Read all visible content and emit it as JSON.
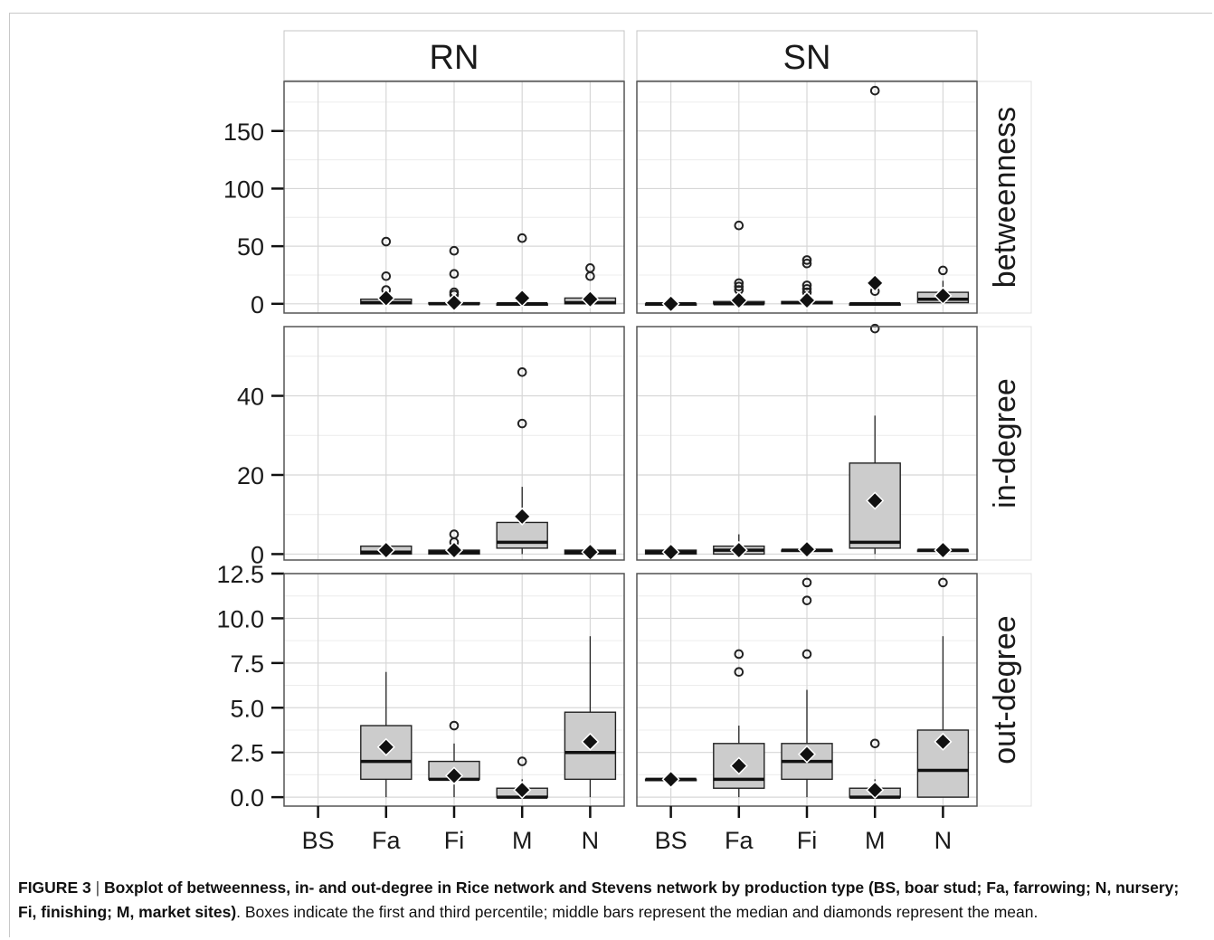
{
  "figure": {
    "label": "FIGURE 3",
    "separator": " | ",
    "title": "Boxplot of betweenness, in- and out-degree in Rice network and Stevens network by production type (BS, boar stud; Fa, farrowing; N, nursery; Fi, finishing; M, market sites)",
    "description": ". Boxes indicate the first and third percentile; middle bars represent the median and diamonds represent the mean."
  },
  "colors": {
    "box_fill": "#cccccc",
    "panel_bg": "#ffffff",
    "grid": "#d7d7d7",
    "strip_bg": "#ffffff",
    "outline": "#333333",
    "text": "#1a1a1a"
  },
  "chart_data": {
    "type": "boxplot",
    "facets": {
      "columns": [
        "RN",
        "SN"
      ],
      "rows": [
        "betweenness",
        "in-degree",
        "out-degree"
      ]
    },
    "categories": [
      "BS",
      "Fa",
      "Fi",
      "M",
      "N"
    ],
    "rows": [
      {
        "name": "betweenness",
        "ylim": [
          -8,
          193
        ],
        "ticks": [
          0,
          50,
          100,
          150
        ],
        "tick_labels": [
          "0",
          "50",
          "100",
          "150"
        ],
        "panels": {
          "RN": [
            null,
            {
              "q1": 0,
              "median": 1,
              "q3": 4,
              "wlo": 0,
              "whi": 9,
              "mean": 5,
              "outliers": [
                12,
                24,
                54
              ]
            },
            {
              "q1": 0,
              "median": 0,
              "q3": 1,
              "wlo": 0,
              "whi": 3,
              "mean": 1,
              "outliers": [
                8,
                10,
                26,
                46
              ]
            },
            {
              "q1": 0,
              "median": 0,
              "q3": 0,
              "wlo": 0,
              "whi": 0,
              "mean": 5,
              "outliers": [
                57
              ]
            },
            {
              "q1": 0,
              "median": 1,
              "q3": 5,
              "wlo": 0,
              "whi": 10,
              "mean": 4,
              "outliers": [
                24,
                31
              ]
            }
          ],
          "SN": [
            {
              "q1": 0,
              "median": 0,
              "q3": 0,
              "wlo": 0,
              "whi": 0,
              "mean": 0,
              "outliers": []
            },
            {
              "q1": 0,
              "median": 0,
              "q3": 2,
              "wlo": 0,
              "whi": 5,
              "mean": 3,
              "outliers": [
                12,
                15,
                18,
                68
              ]
            },
            {
              "q1": 0,
              "median": 1,
              "q3": 2,
              "wlo": 0,
              "whi": 5,
              "mean": 3,
              "outliers": [
                10,
                13,
                16,
                35,
                38
              ]
            },
            {
              "q1": 0,
              "median": 0,
              "q3": 0,
              "wlo": 0,
              "whi": 0,
              "mean": 18,
              "outliers": [
                11,
                185
              ]
            },
            {
              "q1": 1,
              "median": 4,
              "q3": 10,
              "wlo": 0,
              "whi": 20,
              "mean": 7,
              "outliers": [
                29
              ]
            }
          ]
        }
      },
      {
        "name": "in-degree",
        "ylim": [
          -1.5,
          57.5
        ],
        "ticks": [
          0,
          20,
          40
        ],
        "tick_labels": [
          "0",
          "20",
          "40"
        ],
        "panels": {
          "RN": [
            null,
            {
              "q1": 0,
              "median": 0.5,
              "q3": 2,
              "wlo": 0,
              "whi": 3,
              "mean": 1,
              "outliers": []
            },
            {
              "q1": 0,
              "median": 0.5,
              "q3": 1,
              "wlo": 0,
              "whi": 2,
              "mean": 1,
              "outliers": [
                3,
                5
              ]
            },
            {
              "q1": 1.5,
              "median": 3,
              "q3": 8,
              "wlo": 0,
              "whi": 17,
              "mean": 9.5,
              "outliers": [
                33,
                46
              ]
            },
            {
              "q1": 0,
              "median": 0.5,
              "q3": 1,
              "wlo": 0,
              "whi": 1,
              "mean": 0.5,
              "outliers": []
            }
          ],
          "SN": [
            {
              "q1": 0,
              "median": 0.5,
              "q3": 1,
              "wlo": 0,
              "whi": 1,
              "mean": 0.5,
              "outliers": []
            },
            {
              "q1": 0,
              "median": 1,
              "q3": 2,
              "wlo": 0,
              "whi": 5,
              "mean": 1,
              "outliers": []
            },
            {
              "q1": 1,
              "median": 1,
              "q3": 1,
              "wlo": 1,
              "whi": 2,
              "mean": 1.2,
              "outliers": []
            },
            {
              "q1": 1.5,
              "median": 3,
              "q3": 23,
              "wlo": 0,
              "whi": 35,
              "mean": 13.5,
              "outliers": [
                57
              ]
            },
            {
              "q1": 1,
              "median": 1,
              "q3": 1,
              "wlo": 1,
              "whi": 1,
              "mean": 1,
              "outliers": []
            }
          ]
        }
      },
      {
        "name": "out-degree",
        "ylim": [
          -0.5,
          12.5
        ],
        "ticks": [
          0,
          2.5,
          5,
          7.5,
          10,
          12.5
        ],
        "tick_labels": [
          "0.0",
          "2.5",
          "5.0",
          "7.5",
          "10.0",
          "12.5"
        ],
        "panels": {
          "RN": [
            null,
            {
              "q1": 1,
              "median": 2,
              "q3": 4,
              "wlo": 0,
              "whi": 7,
              "mean": 2.8,
              "outliers": []
            },
            {
              "q1": 1,
              "median": 1,
              "q3": 2,
              "wlo": 0,
              "whi": 3,
              "mean": 1.2,
              "outliers": [
                4
              ]
            },
            {
              "q1": 0,
              "median": 0,
              "q3": 0.5,
              "wlo": 0,
              "whi": 1,
              "mean": 0.4,
              "outliers": [
                2
              ]
            },
            {
              "q1": 1,
              "median": 2.5,
              "q3": 4.75,
              "wlo": 0,
              "whi": 9,
              "mean": 3.1,
              "outliers": []
            }
          ],
          "SN": [
            {
              "q1": 1,
              "median": 1,
              "q3": 1,
              "wlo": 1,
              "whi": 1,
              "mean": 1,
              "outliers": []
            },
            {
              "q1": 0.5,
              "median": 1,
              "q3": 3,
              "wlo": 0,
              "whi": 4,
              "mean": 1.75,
              "outliers": [
                7,
                8
              ]
            },
            {
              "q1": 1,
              "median": 2,
              "q3": 3,
              "wlo": 0,
              "whi": 6,
              "mean": 2.4,
              "outliers": [
                8,
                11,
                12
              ]
            },
            {
              "q1": 0,
              "median": 0,
              "q3": 0.5,
              "wlo": 0,
              "whi": 1,
              "mean": 0.4,
              "outliers": [
                3
              ]
            },
            {
              "q1": 0,
              "median": 1.5,
              "q3": 3.75,
              "wlo": 0,
              "whi": 9,
              "mean": 3.1,
              "outliers": [
                12
              ]
            }
          ]
        }
      }
    ],
    "grid": true
  }
}
